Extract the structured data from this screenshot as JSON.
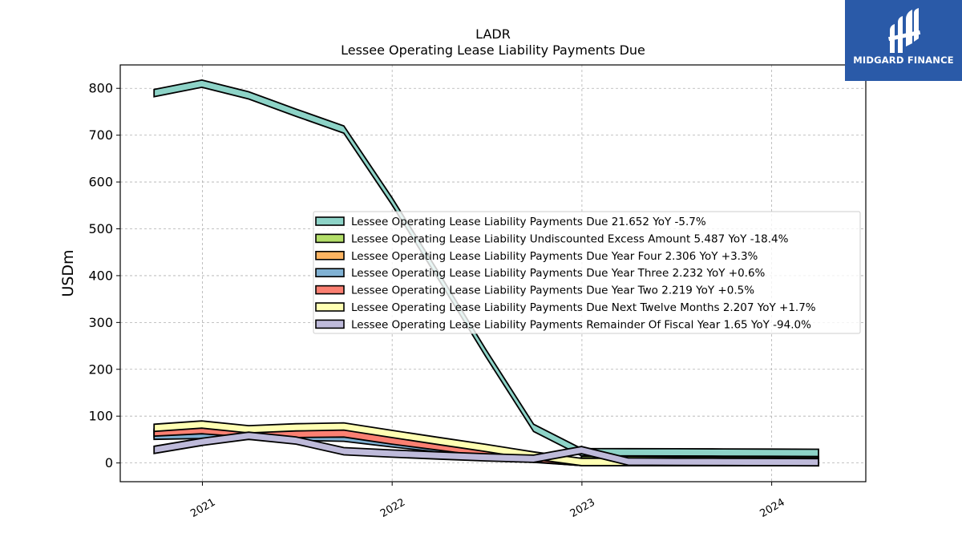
{
  "chart_data": {
    "type": "area",
    "title": "LADR",
    "subtitle": "Lessee Operating Lease Liability Payments Due",
    "xlabel": "",
    "ylabel": "USDm",
    "ylim": [
      -40,
      850
    ],
    "yticks": [
      0,
      100,
      200,
      300,
      400,
      500,
      600,
      700,
      800
    ],
    "xlim": [
      "2020-07-27",
      "2024-06-30"
    ],
    "xticks": [
      "2021",
      "2022",
      "2023",
      "2024"
    ],
    "x": [
      "2020-09-30",
      "2020-12-31",
      "2021-03-31",
      "2021-06-30",
      "2021-09-30",
      "2021-12-31",
      "2022-03-31",
      "2022-06-30",
      "2022-09-30",
      "2022-12-31",
      "2023-03-31",
      "2023-06-30",
      "2023-09-30",
      "2023-12-31",
      "2024-03-31"
    ],
    "grid": true,
    "legend_position": "center-right",
    "series": [
      {
        "name": "Lessee Operating Lease Liability Payments Due",
        "legend": "Lessee Operating Lease Liability Payments Due  21.652 YoY -5.7%",
        "color": "#8dd3c7",
        "values": [
          790,
          810,
          785,
          748,
          712,
          560,
          400,
          235,
          75,
          23,
          22.8,
          22.6,
          22.3,
          22.0,
          21.652
        ]
      },
      {
        "name": "Lessee Operating Lease Liability Undiscounted Excess Amount",
        "legend": "Lessee Operating Lease Liability Undiscounted Excess Amount  5.487 YoY -18.4%",
        "color": "#b3de69",
        "values": [
          null,
          null,
          null,
          null,
          null,
          null,
          null,
          null,
          null,
          6.7,
          6.3,
          6.0,
          5.8,
          5.6,
          5.487
        ]
      },
      {
        "name": "Lessee Operating Lease Liability Payments Due Year Four",
        "legend": "Lessee Operating Lease Liability Payments Due Year Four  2.306 YoY +3.3%",
        "color": "#fdb462",
        "values": [
          62,
          65,
          62,
          60,
          58,
          45,
          33,
          21,
          10,
          2.23,
          2.25,
          2.27,
          2.29,
          2.3,
          2.306
        ]
      },
      {
        "name": "Lessee Operating Lease Liability Payments Due Year Three",
        "legend": "Lessee Operating Lease Liability Payments Due Year Three  2.232 YoY +0.6%",
        "color": "#80b1d3",
        "values": [
          58,
          60,
          58,
          56,
          54,
          42,
          31,
          20,
          9,
          2.22,
          2.22,
          2.23,
          2.23,
          2.23,
          2.232
        ]
      },
      {
        "name": "Lessee Operating Lease Liability Payments Due Year Two",
        "legend": "Lessee Operating Lease Liability Payments Due Year Two  2.219 YoY +0.5%",
        "color": "#fb8072",
        "values": [
          65,
          70,
          63,
          62,
          63,
          48,
          35,
          22,
          10,
          2.21,
          2.21,
          2.21,
          2.22,
          2.22,
          2.219
        ]
      },
      {
        "name": "Lessee Operating Lease Liability Payments Due Next Twelve Months",
        "legend": "Lessee Operating Lease Liability Payments Due Next Twelve Months  2.207 YoY +1.7%",
        "color": "#ffffb3",
        "values": [
          75,
          82,
          72,
          76,
          78,
          62,
          47,
          32,
          16,
          2.17,
          2.18,
          2.19,
          2.2,
          2.21,
          2.207
        ]
      },
      {
        "name": "Lessee Operating Lease Liability Payments Remainder Of Fiscal Year",
        "legend": "Lessee Operating Lease Liability Payments Remainder Of Fiscal Year  1.65 YoY -94.0%",
        "color": "#bebada",
        "values": [
          28,
          45,
          58,
          48,
          25,
          20,
          16,
          12,
          9,
          27.5,
          3.0,
          2.5,
          2.2,
          1.9,
          1.65
        ]
      }
    ]
  },
  "brand": {
    "name": "MIDGARD FINANCE",
    "color": "#2a5aa8",
    "icon": "midgard-logo-icon"
  }
}
